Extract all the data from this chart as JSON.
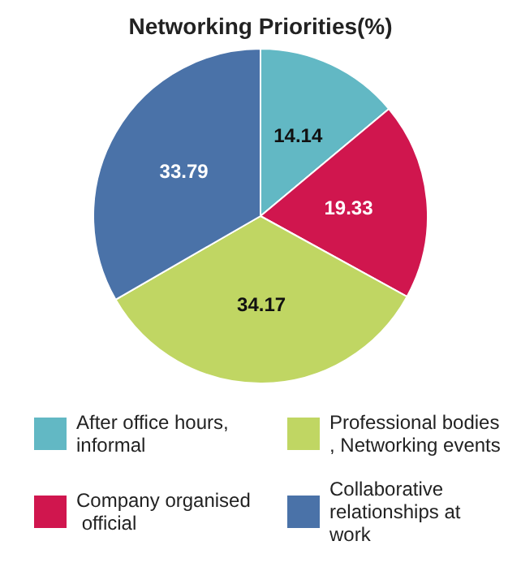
{
  "chart_data": {
    "type": "pie",
    "title": "Networking Priorities(%)",
    "categories": [
      "After office hours, informal",
      "Company organised official",
      "Professional bodies, Networking events",
      "Collaborative relationships at work"
    ],
    "values": [
      14.14,
      19.33,
      34.17,
      33.79
    ],
    "colors": [
      "#62b8c4",
      "#d0164e",
      "#c0d663",
      "#4a72a8"
    ],
    "data_labels": true,
    "legend": "bottom"
  }
}
